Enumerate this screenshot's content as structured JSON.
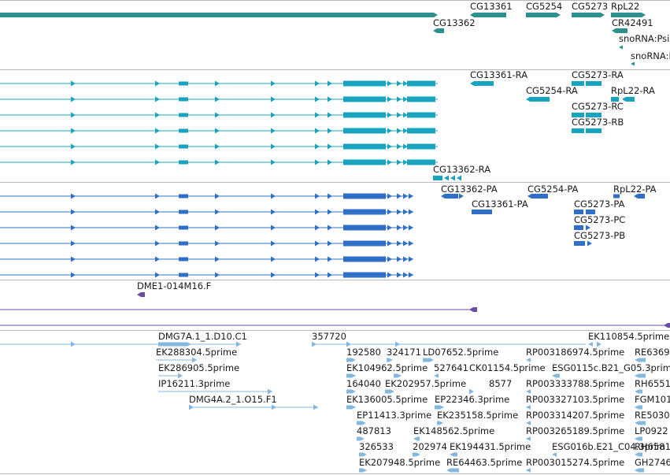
{
  "colors": {
    "gene": "#2e8f8f",
    "transcript": "#1aa3bf",
    "protein": "#2f6fc8",
    "purple": "#6b4ea0",
    "est": "#84b8de",
    "separator": "#b9b9b9"
  },
  "tracks": {
    "genes": {
      "labels": [
        "CG13361",
        "CG5254",
        "CG5273",
        "RpL22",
        "CG13362",
        "CR42491",
        "snoRNA:Psi",
        "snoRNA:P"
      ]
    },
    "transcripts": {
      "labels": [
        "CG13361-RA",
        "CG5273-RA",
        "CG5254-RA",
        "RpL22-RA",
        "CG5273-RC",
        "CG5273-RB",
        "CG13362-RA"
      ]
    },
    "proteins": {
      "labels": [
        "CG13362-PA",
        "CG5254-PA",
        "RpL22-PA",
        "CG13361-PA",
        "CG5273-PA",
        "CG5273-PC",
        "CG5273-PB"
      ]
    },
    "clones": {
      "labels": [
        "DME1-014M16.F"
      ]
    },
    "ests": {
      "labels": [
        "DMG7A.1_1.D10.C1",
        "357720",
        "EK110854.5prime",
        "RE6369",
        "EK288304.5prime",
        "192580",
        "324171",
        "LD07652.5prime",
        "RP003186974.5prime",
        "EK286905.5prime",
        "EK104962.5prime",
        "527641",
        "CK01154.5prime",
        "ESG0115c.B21_G05.3prim",
        "IP16211.3prime",
        "164040",
        "EK202957.5prime",
        "8577",
        "RP003333788.5prime",
        "RH6551",
        "DMG4A.2_1.O15.F1",
        "EK136005.5prime",
        "EP22346.3prime",
        "RP003327103.5prime",
        "FGM101",
        "EP11413.3prime",
        "EK235158.5prime",
        "RP003314207.5prime",
        "RE5030",
        "487813",
        "EK148562.5prime",
        "RP003265189.5prime",
        "LP0922",
        "326533",
        "202974",
        "EK194431.5prime",
        "ESG016b.E21_C04.3prim",
        "RH6581",
        "EK207948.5prime",
        "RE64463.5prime",
        "RP003015274.5prime",
        "GH2746"
      ]
    }
  }
}
